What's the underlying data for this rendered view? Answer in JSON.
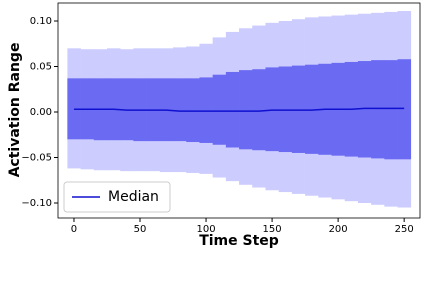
{
  "chart_data": {
    "type": "band",
    "xlabel": "Time Step",
    "ylabel": "Activation Range",
    "x": [
      0,
      10,
      20,
      30,
      40,
      50,
      60,
      70,
      80,
      90,
      100,
      110,
      120,
      130,
      140,
      150,
      160,
      170,
      180,
      190,
      200,
      210,
      220,
      230,
      240,
      250
    ],
    "bands": [
      {
        "color": "#ccccff",
        "upper": [
          0.07,
          0.069,
          0.069,
          0.07,
          0.069,
          0.07,
          0.07,
          0.07,
          0.071,
          0.072,
          0.075,
          0.082,
          0.088,
          0.092,
          0.095,
          0.098,
          0.1,
          0.102,
          0.104,
          0.105,
          0.106,
          0.107,
          0.108,
          0.109,
          0.11,
          0.111
        ],
        "lower": [
          -0.062,
          -0.063,
          -0.064,
          -0.064,
          -0.065,
          -0.065,
          -0.065,
          -0.066,
          -0.066,
          -0.067,
          -0.068,
          -0.072,
          -0.076,
          -0.08,
          -0.083,
          -0.086,
          -0.088,
          -0.09,
          -0.092,
          -0.094,
          -0.096,
          -0.098,
          -0.1,
          -0.102,
          -0.104,
          -0.105
        ]
      },
      {
        "color": "#6a6af2",
        "upper": [
          0.037,
          0.037,
          0.037,
          0.037,
          0.037,
          0.037,
          0.037,
          0.037,
          0.037,
          0.037,
          0.038,
          0.041,
          0.044,
          0.046,
          0.047,
          0.049,
          0.05,
          0.051,
          0.052,
          0.053,
          0.054,
          0.055,
          0.056,
          0.057,
          0.057,
          0.058
        ],
        "lower": [
          -0.03,
          -0.03,
          -0.031,
          -0.031,
          -0.031,
          -0.032,
          -0.032,
          -0.032,
          -0.032,
          -0.033,
          -0.034,
          -0.036,
          -0.039,
          -0.041,
          -0.042,
          -0.043,
          -0.044,
          -0.045,
          -0.046,
          -0.047,
          -0.048,
          -0.049,
          -0.05,
          -0.051,
          -0.052,
          -0.052
        ]
      }
    ],
    "series": [
      {
        "name": "Median",
        "color": "#1010d0",
        "values": [
          0.003,
          0.003,
          0.003,
          0.003,
          0.002,
          0.002,
          0.002,
          0.002,
          0.001,
          0.001,
          0.001,
          0.001,
          0.001,
          0.001,
          0.001,
          0.002,
          0.002,
          0.002,
          0.002,
          0.003,
          0.003,
          0.003,
          0.004,
          0.004,
          0.004,
          0.004
        ]
      }
    ],
    "xlim": [
      -12.1,
      262
    ],
    "ylim": [
      -0.1165,
      0.1198
    ],
    "xticks": [
      0,
      50,
      100,
      150,
      200,
      250
    ],
    "yticks": [
      {
        "value": -0.1,
        "label": "−0.10"
      },
      {
        "value": -0.05,
        "label": "−0.05"
      },
      {
        "value": 0,
        "label": "0.00"
      },
      {
        "value": 0.05,
        "label": "0.05"
      },
      {
        "value": 0.1,
        "label": "0.10"
      }
    ],
    "legend": "lower left"
  }
}
